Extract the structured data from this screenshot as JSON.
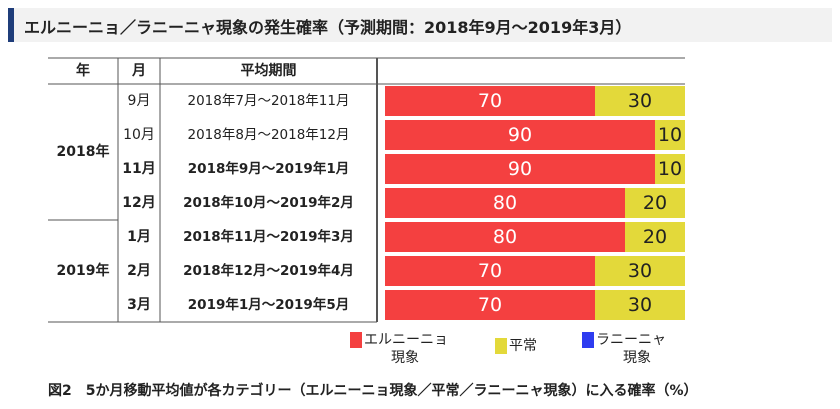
{
  "title": "エルニーニョ／ラニーニャ現象の発生確率（予測期間：2018年9月～2019年3月）",
  "caption": "図2　5か月移動平均値が各カテゴリー（エルニーニョ現象／平常／ラニーニャ現象）に入る確率（%）",
  "colors": {
    "elnino": "#f44040",
    "normal": "#e3d93a",
    "lanina": "#2e3cf0",
    "title_accent": "#1f3d7a"
  },
  "chart_data": {
    "type": "bar",
    "orientation": "horizontal",
    "stacked": true,
    "headers": {
      "year": "年",
      "month": "月",
      "period": "平均期間"
    },
    "year_groups": [
      {
        "label": "2018年",
        "rows": [
          0,
          1,
          2,
          3
        ]
      },
      {
        "label": "2019年",
        "rows": [
          4,
          5,
          6
        ]
      }
    ],
    "months": [
      "9月",
      "10月",
      "11月",
      "12月",
      "1月",
      "2月",
      "3月"
    ],
    "month_bold": [
      false,
      false,
      true,
      true,
      true,
      true,
      true
    ],
    "categories": [
      "2018年7月～2018年11月",
      "2018年8月～2018年12月",
      "2018年9月～2019年1月",
      "2018年10月～2019年2月",
      "2018年11月～2019年3月",
      "2018年12月～2019年4月",
      "2019年1月～2019年5月"
    ],
    "series": [
      {
        "name": "エルニーニョ現象",
        "values": [
          70,
          90,
          90,
          80,
          80,
          70,
          70
        ]
      },
      {
        "name": "平常",
        "values": [
          30,
          10,
          10,
          20,
          20,
          30,
          30
        ]
      },
      {
        "name": "ラニーニャ現象",
        "values": [
          0,
          0,
          0,
          0,
          0,
          0,
          0
        ]
      }
    ],
    "xlim": [
      0,
      100
    ],
    "legend": {
      "position": "bottom",
      "items": [
        {
          "key": "elnino",
          "line1": "エルニーニョ",
          "line2": "現象"
        },
        {
          "key": "normal",
          "line1": "平常",
          "line2": ""
        },
        {
          "key": "lanina",
          "line1": "ラニーニャ",
          "line2": "現象"
        }
      ]
    }
  }
}
